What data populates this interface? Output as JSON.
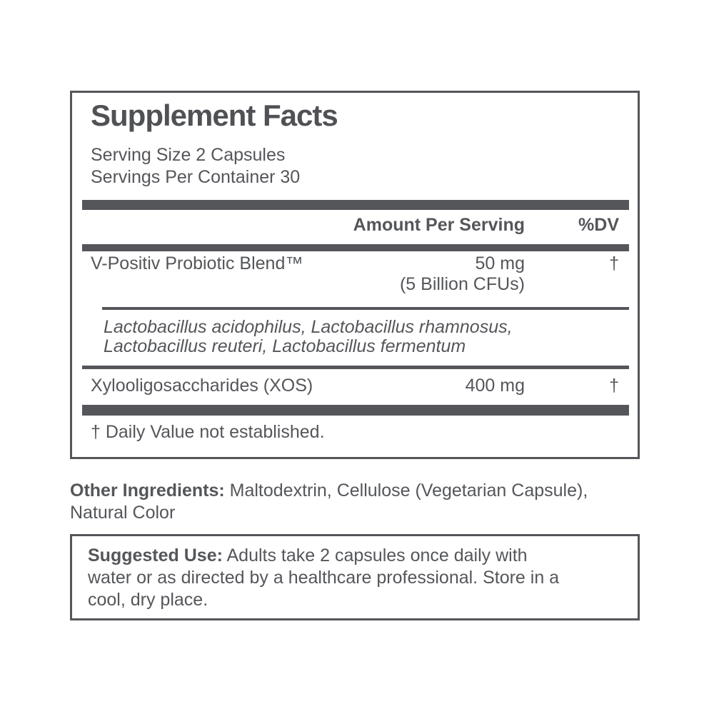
{
  "colors": {
    "ink": "#54565a",
    "title_ink": "#4f5155",
    "background": "#ffffff"
  },
  "supplement_facts": {
    "title": "Supplement Facts",
    "serving_size": "Serving Size 2 Capsules",
    "servings_per_container": "Servings Per Container 30",
    "columns": {
      "amount": "Amount Per Serving",
      "dv": "%DV"
    },
    "rows": [
      {
        "name": "V-Positiv Probiotic Blend™",
        "amount": "50 mg",
        "amount_detail": "(5 Billion CFUs)",
        "dv": "†"
      },
      {
        "name": "Xylooligosaccharides (XOS)",
        "amount": "400 mg",
        "dv": "†"
      }
    ],
    "blend_ingredients": {
      "line1": "Lactobacillus acidophilus, Lactobacillus rhamnosus,",
      "line2": "Lactobacillus reuteri, Lactobacillus fermentum"
    },
    "footnote": "† Daily Value not established."
  },
  "other_ingredients": {
    "label": "Other Ingredients:",
    "line1_rest": " Maltodextrin, Cellulose (Vegetarian Capsule),",
    "line2": "Natural Color"
  },
  "suggested_use": {
    "label": "Suggested Use:",
    "line1_rest": " Adults take 2 capsules once daily with",
    "line2": "water or as directed by a healthcare professional. Store in a",
    "line3": "cool, dry place."
  }
}
